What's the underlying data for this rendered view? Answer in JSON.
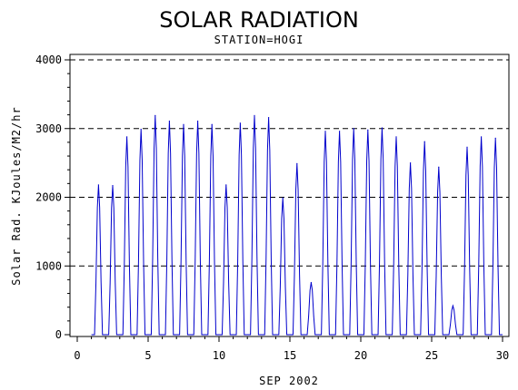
{
  "chart_data": {
    "type": "line",
    "title": "SOLAR RADIATION",
    "subtitle": "STATION=HOGI",
    "xlabel": "SEP 2002",
    "ylabel": "Solar Rad. KJoules/M2/hr",
    "xlim": [
      0,
      30
    ],
    "ylim": [
      0,
      4000
    ],
    "x_ticks": [
      0,
      5,
      10,
      15,
      20,
      25,
      30
    ],
    "y_ticks": [
      0,
      1000,
      2000,
      3000,
      4000
    ],
    "grid": "horizontal-dashed",
    "line_color": "#0000cc",
    "series": [
      {
        "daily_peaks": [
          {
            "x": 1.5,
            "y": 2180
          },
          {
            "x": 2.5,
            "y": 2170
          },
          {
            "x": 3.5,
            "y": 2880
          },
          {
            "x": 4.5,
            "y": 2990
          },
          {
            "x": 5.5,
            "y": 3190
          },
          {
            "x": 6.5,
            "y": 3110
          },
          {
            "x": 7.5,
            "y": 3060
          },
          {
            "x": 8.5,
            "y": 3110
          },
          {
            "x": 9.5,
            "y": 3060
          },
          {
            "x": 10.5,
            "y": 2180
          },
          {
            "x": 11.5,
            "y": 3080
          },
          {
            "x": 12.5,
            "y": 3190
          },
          {
            "x": 13.5,
            "y": 3160
          },
          {
            "x": 14.5,
            "y": 1990
          },
          {
            "x": 15.5,
            "y": 2490
          },
          {
            "x": 16.5,
            "y": 760
          },
          {
            "x": 17.5,
            "y": 2960
          },
          {
            "x": 18.5,
            "y": 2960
          },
          {
            "x": 19.5,
            "y": 3000
          },
          {
            "x": 20.5,
            "y": 2980
          },
          {
            "x": 21.5,
            "y": 3010
          },
          {
            "x": 22.5,
            "y": 2880
          },
          {
            "x": 23.5,
            "y": 2500
          },
          {
            "x": 24.5,
            "y": 2810
          },
          {
            "x": 25.5,
            "y": 2440
          },
          {
            "x": 26.5,
            "y": 420
          },
          {
            "x": 27.5,
            "y": 2730
          },
          {
            "x": 28.5,
            "y": 2880
          },
          {
            "x": 29.5,
            "y": 2860
          }
        ]
      }
    ]
  }
}
